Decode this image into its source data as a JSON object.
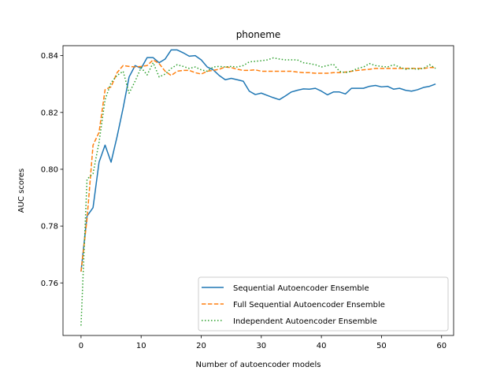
{
  "chart_data": {
    "type": "line",
    "title": "phoneme",
    "xlabel": "Number of autoencoder models",
    "ylabel": "AUC scores",
    "xlim": [
      -3,
      62
    ],
    "ylim": [
      0.7415,
      0.8435
    ],
    "xticks": [
      0,
      10,
      20,
      30,
      40,
      50,
      60
    ],
    "yticks": [
      0.76,
      0.78,
      0.8,
      0.82,
      0.84
    ],
    "ytick_labels": [
      "0.76",
      "0.78",
      "0.80",
      "0.82",
      "0.84"
    ],
    "grid": false,
    "legend_position": "lower-right",
    "x": [
      0,
      1,
      2,
      3,
      4,
      5,
      6,
      7,
      8,
      9,
      10,
      11,
      12,
      13,
      14,
      15,
      16,
      17,
      18,
      19,
      20,
      21,
      22,
      23,
      24,
      25,
      26,
      27,
      28,
      29,
      30,
      31,
      32,
      33,
      34,
      35,
      36,
      37,
      38,
      39,
      40,
      41,
      42,
      43,
      44,
      45,
      46,
      47,
      48,
      49,
      50,
      51,
      52,
      53,
      54,
      55,
      56,
      57,
      58,
      59
    ],
    "series": [
      {
        "name": "Sequential Autoencoder Ensemble",
        "color": "#1f77b4",
        "style": "solid",
        "values": [
          0.764,
          0.7835,
          0.7865,
          0.8025,
          0.8085,
          0.8025,
          0.8115,
          0.8215,
          0.8325,
          0.8365,
          0.8355,
          0.8393,
          0.8393,
          0.8375,
          0.8388,
          0.842,
          0.842,
          0.841,
          0.8398,
          0.84,
          0.8385,
          0.836,
          0.835,
          0.833,
          0.8315,
          0.832,
          0.8315,
          0.831,
          0.8275,
          0.8263,
          0.8268,
          0.826,
          0.8252,
          0.8245,
          0.8258,
          0.8272,
          0.8278,
          0.8283,
          0.8282,
          0.8285,
          0.8275,
          0.8262,
          0.8272,
          0.8272,
          0.8265,
          0.8285,
          0.8285,
          0.8285,
          0.8292,
          0.8295,
          0.829,
          0.8292,
          0.8282,
          0.8285,
          0.8278,
          0.8275,
          0.828,
          0.8288,
          0.8292,
          0.83
        ]
      },
      {
        "name": "Full Sequential Autoencoder Ensemble",
        "color": "#ff7f0e",
        "style": "dashed",
        "values": [
          0.764,
          0.7825,
          0.8085,
          0.813,
          0.828,
          0.829,
          0.834,
          0.8365,
          0.8362,
          0.836,
          0.8362,
          0.8365,
          0.8385,
          0.8372,
          0.8345,
          0.833,
          0.8345,
          0.8348,
          0.8348,
          0.834,
          0.8335,
          0.8345,
          0.8348,
          0.8352,
          0.836,
          0.8358,
          0.8352,
          0.8348,
          0.8348,
          0.835,
          0.8345,
          0.8345,
          0.8345,
          0.8345,
          0.8345,
          0.8345,
          0.8342,
          0.834,
          0.834,
          0.8338,
          0.8338,
          0.8338,
          0.834,
          0.834,
          0.8342,
          0.8345,
          0.8348,
          0.835,
          0.8352,
          0.8355,
          0.8355,
          0.8355,
          0.8355,
          0.8355,
          0.8355,
          0.8355,
          0.8355,
          0.8355,
          0.8358,
          0.8358
        ]
      },
      {
        "name": "Independent Autoencoder Ensemble",
        "color": "#2ca02c",
        "style": "dotted",
        "values": [
          0.745,
          0.7965,
          0.7985,
          0.8095,
          0.8245,
          0.8305,
          0.833,
          0.8345,
          0.8268,
          0.831,
          0.8358,
          0.8332,
          0.8375,
          0.8325,
          0.8335,
          0.8355,
          0.8368,
          0.8362,
          0.8355,
          0.836,
          0.835,
          0.8345,
          0.836,
          0.8362,
          0.836,
          0.8362,
          0.836,
          0.8365,
          0.8378,
          0.838,
          0.8382,
          0.8385,
          0.8392,
          0.8388,
          0.8385,
          0.8385,
          0.8385,
          0.8375,
          0.8372,
          0.8368,
          0.836,
          0.8365,
          0.837,
          0.8345,
          0.834,
          0.8345,
          0.8355,
          0.836,
          0.8372,
          0.8365,
          0.8362,
          0.836,
          0.8368,
          0.836,
          0.8352,
          0.8355,
          0.8352,
          0.8355,
          0.8368,
          0.8355
        ]
      }
    ]
  }
}
